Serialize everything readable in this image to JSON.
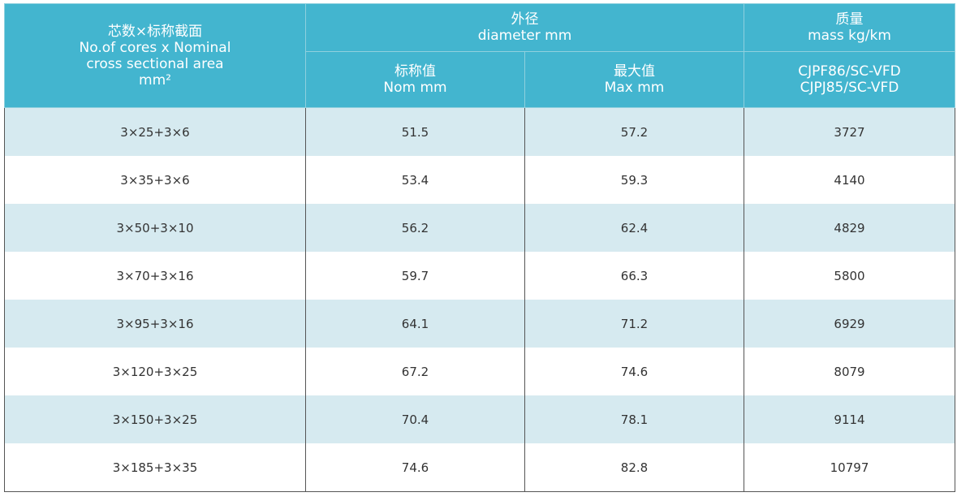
{
  "header": {
    "col1": {
      "line1": "芯数×标称截面",
      "line2": "No.of cores x Nominal",
      "line3": "cross sectional area",
      "line4": "mm²"
    },
    "col2_group": {
      "line1": "外径",
      "line2": "diameter  mm"
    },
    "col2_sub": {
      "line1": "标称值",
      "line2": "Nom mm"
    },
    "col3_sub": {
      "line1": "最大值",
      "line2": "Max mm"
    },
    "col4_group": {
      "line1": "质量",
      "line2": "mass kg/km"
    },
    "col4_sub": {
      "line1": "CJPF86/SC-VFD",
      "line2": "CJPJ85/SC-VFD"
    }
  },
  "colors": {
    "header_bg": "#43b5cf",
    "stripe": "#d6eaf0"
  },
  "rows": [
    {
      "cores": "3×25+3×6",
      "nom": "51.5",
      "max": "57.2",
      "mass": "3727"
    },
    {
      "cores": "3×35+3×6",
      "nom": "53.4",
      "max": "59.3",
      "mass": "4140"
    },
    {
      "cores": "3×50+3×10",
      "nom": "56.2",
      "max": "62.4",
      "mass": "4829"
    },
    {
      "cores": "3×70+3×16",
      "nom": "59.7",
      "max": "66.3",
      "mass": "5800"
    },
    {
      "cores": "3×95+3×16",
      "nom": "64.1",
      "max": "71.2",
      "mass": "6929"
    },
    {
      "cores": "3×120+3×25",
      "nom": "67.2",
      "max": "74.6",
      "mass": "8079"
    },
    {
      "cores": "3×150+3×25",
      "nom": "70.4",
      "max": "78.1",
      "mass": "9114"
    },
    {
      "cores": "3×185+3×35",
      "nom": "74.6",
      "max": "82.8",
      "mass": "10797"
    }
  ]
}
